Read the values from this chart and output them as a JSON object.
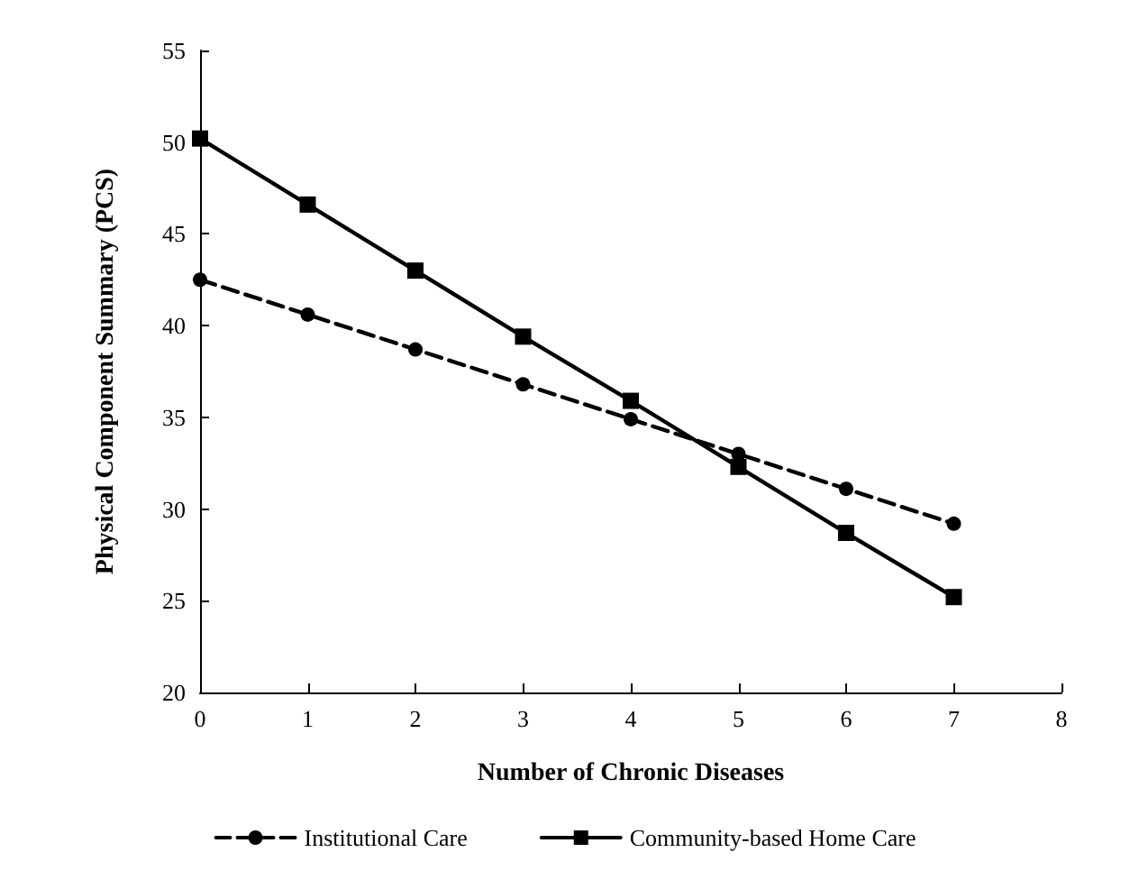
{
  "chart_data": {
    "type": "line",
    "xlabel": "Number of Chronic Diseases",
    "ylabel": "Physical Component Summary (PCS)",
    "x": [
      0,
      1,
      2,
      3,
      4,
      5,
      6,
      7
    ],
    "xlim": [
      0,
      8
    ],
    "xticks": [
      0,
      1,
      2,
      3,
      4,
      5,
      6,
      7,
      8
    ],
    "ylim": [
      20,
      55
    ],
    "yticks": [
      20,
      25,
      30,
      35,
      40,
      45,
      50,
      55
    ],
    "grid": false,
    "legend": "bottom",
    "series": [
      {
        "name": "Institutional Care",
        "color": "#000000",
        "marker": "circle",
        "line_style": "dashed",
        "values": [
          42.5,
          40.6,
          38.7,
          36.8,
          34.9,
          33.0,
          31.1,
          29.2
        ]
      },
      {
        "name": "Community-based Home Care",
        "color": "#000000",
        "marker": "square",
        "line_style": "solid",
        "values": [
          50.2,
          46.6,
          43.0,
          39.4,
          35.9,
          32.3,
          28.7,
          25.2
        ]
      }
    ]
  }
}
